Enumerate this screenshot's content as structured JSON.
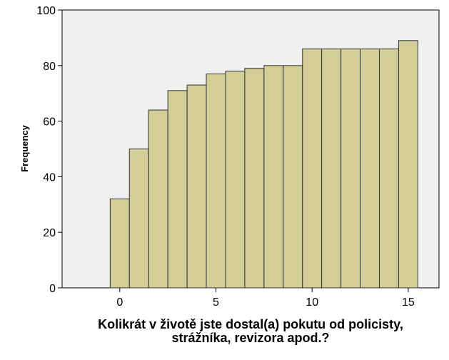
{
  "chart_data": {
    "type": "bar",
    "title": "",
    "xlabel_lines": [
      "Kolikrát v životě jste dostal(a) pokutu od policisty,",
      "strážníka, revizora apod.?"
    ],
    "ylabel": "Frequency",
    "x": [
      0,
      1,
      2,
      3,
      4,
      5,
      6,
      7,
      8,
      9,
      10,
      11,
      12,
      13,
      14,
      15
    ],
    "values": [
      32,
      50,
      64,
      71,
      73,
      77,
      78,
      79,
      80,
      80,
      86,
      86,
      86,
      86,
      86,
      89
    ],
    "xlim": [
      -3,
      16.6
    ],
    "ylim": [
      0,
      100
    ],
    "xticks": [
      "0",
      "5",
      "10",
      "15"
    ],
    "yticks": [
      "0",
      "20",
      "40",
      "60",
      "80",
      "100"
    ],
    "grid": false,
    "legend": "none",
    "colors": {
      "bar_fill": "#d3ce97",
      "bar_stroke": "#333333",
      "plot_background": "#f0f0f0",
      "axis": "#000000"
    }
  }
}
